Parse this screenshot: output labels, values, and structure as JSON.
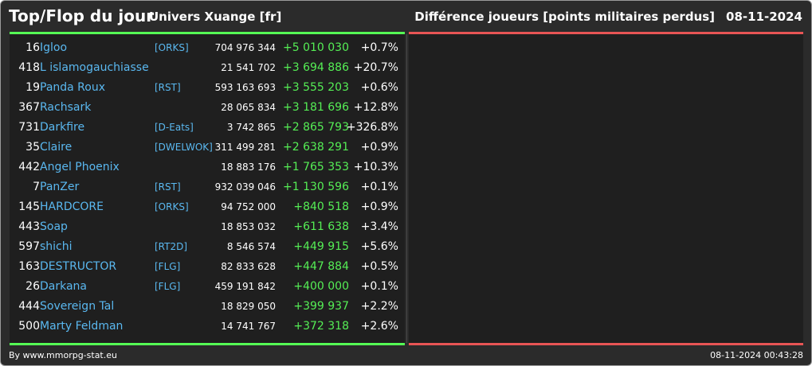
{
  "header": {
    "title": "Top/Flop du jour",
    "subtitle": "Univers Xuange [fr]",
    "metric": "Différence joueurs [points militaires perdus]",
    "date": "08-11-2024"
  },
  "colors": {
    "background": "#2b2b2b",
    "panel": "#1f1f1f",
    "top_accent": "#55ff55",
    "flop_accent": "#e85555",
    "name_link": "#5ab8f0",
    "positive_diff": "#55ee55"
  },
  "rows": [
    {
      "rank": "16",
      "name": "Igloo",
      "alliance": "[ORKS]",
      "total": "704 976 344",
      "diff": "+5 010 030",
      "pct": "+0.7%"
    },
    {
      "rank": "418",
      "name": "L islamogauchiasse",
      "alliance": "",
      "total": "21 541 702",
      "diff": "+3 694 886",
      "pct": "+20.7%"
    },
    {
      "rank": "19",
      "name": "Panda Roux",
      "alliance": "[RST]",
      "total": "593 163 693",
      "diff": "+3 555 203",
      "pct": "+0.6%"
    },
    {
      "rank": "367",
      "name": "Rachsark",
      "alliance": "",
      "total": "28 065 834",
      "diff": "+3 181 696",
      "pct": "+12.8%"
    },
    {
      "rank": "731",
      "name": "Darkfire",
      "alliance": "[D-Eats]",
      "total": "3 742 865",
      "diff": "+2 865 793",
      "pct": "+326.8%"
    },
    {
      "rank": "35",
      "name": "Claire",
      "alliance": "[DWELWOK]",
      "total": "311 499 281",
      "diff": "+2 638 291",
      "pct": "+0.9%"
    },
    {
      "rank": "442",
      "name": "Angel Phoenix",
      "alliance": "",
      "total": "18 883 176",
      "diff": "+1 765 353",
      "pct": "+10.3%"
    },
    {
      "rank": "7",
      "name": "PanZer",
      "alliance": "[RST]",
      "total": "932 039 046",
      "diff": "+1 130 596",
      "pct": "+0.1%"
    },
    {
      "rank": "145",
      "name": "HARDCORE",
      "alliance": "[ORKS]",
      "total": "94 752 000",
      "diff": "+840 518",
      "pct": "+0.9%"
    },
    {
      "rank": "443",
      "name": "Soap",
      "alliance": "",
      "total": "18 853 032",
      "diff": "+611 638",
      "pct": "+3.4%"
    },
    {
      "rank": "597",
      "name": "shichi",
      "alliance": "[RT2D]",
      "total": "8 546 574",
      "diff": "+449 915",
      "pct": "+5.6%"
    },
    {
      "rank": "163",
      "name": "DESTRUCTOR",
      "alliance": "[FLG]",
      "total": "82 833 628",
      "diff": "+447 884",
      "pct": "+0.5%"
    },
    {
      "rank": "26",
      "name": "Darkana",
      "alliance": "[FLG]",
      "total": "459 191 842",
      "diff": "+400 000",
      "pct": "+0.1%"
    },
    {
      "rank": "444",
      "name": "Sovereign Tal",
      "alliance": "",
      "total": "18 829 050",
      "diff": "+399 937",
      "pct": "+2.2%"
    },
    {
      "rank": "500",
      "name": "Marty Feldman",
      "alliance": "",
      "total": "14 741 767",
      "diff": "+372 318",
      "pct": "+2.6%"
    }
  ],
  "footer": {
    "source": "By www.mmorpg-stat.eu",
    "timestamp": "08-11-2024 00:43:28"
  }
}
